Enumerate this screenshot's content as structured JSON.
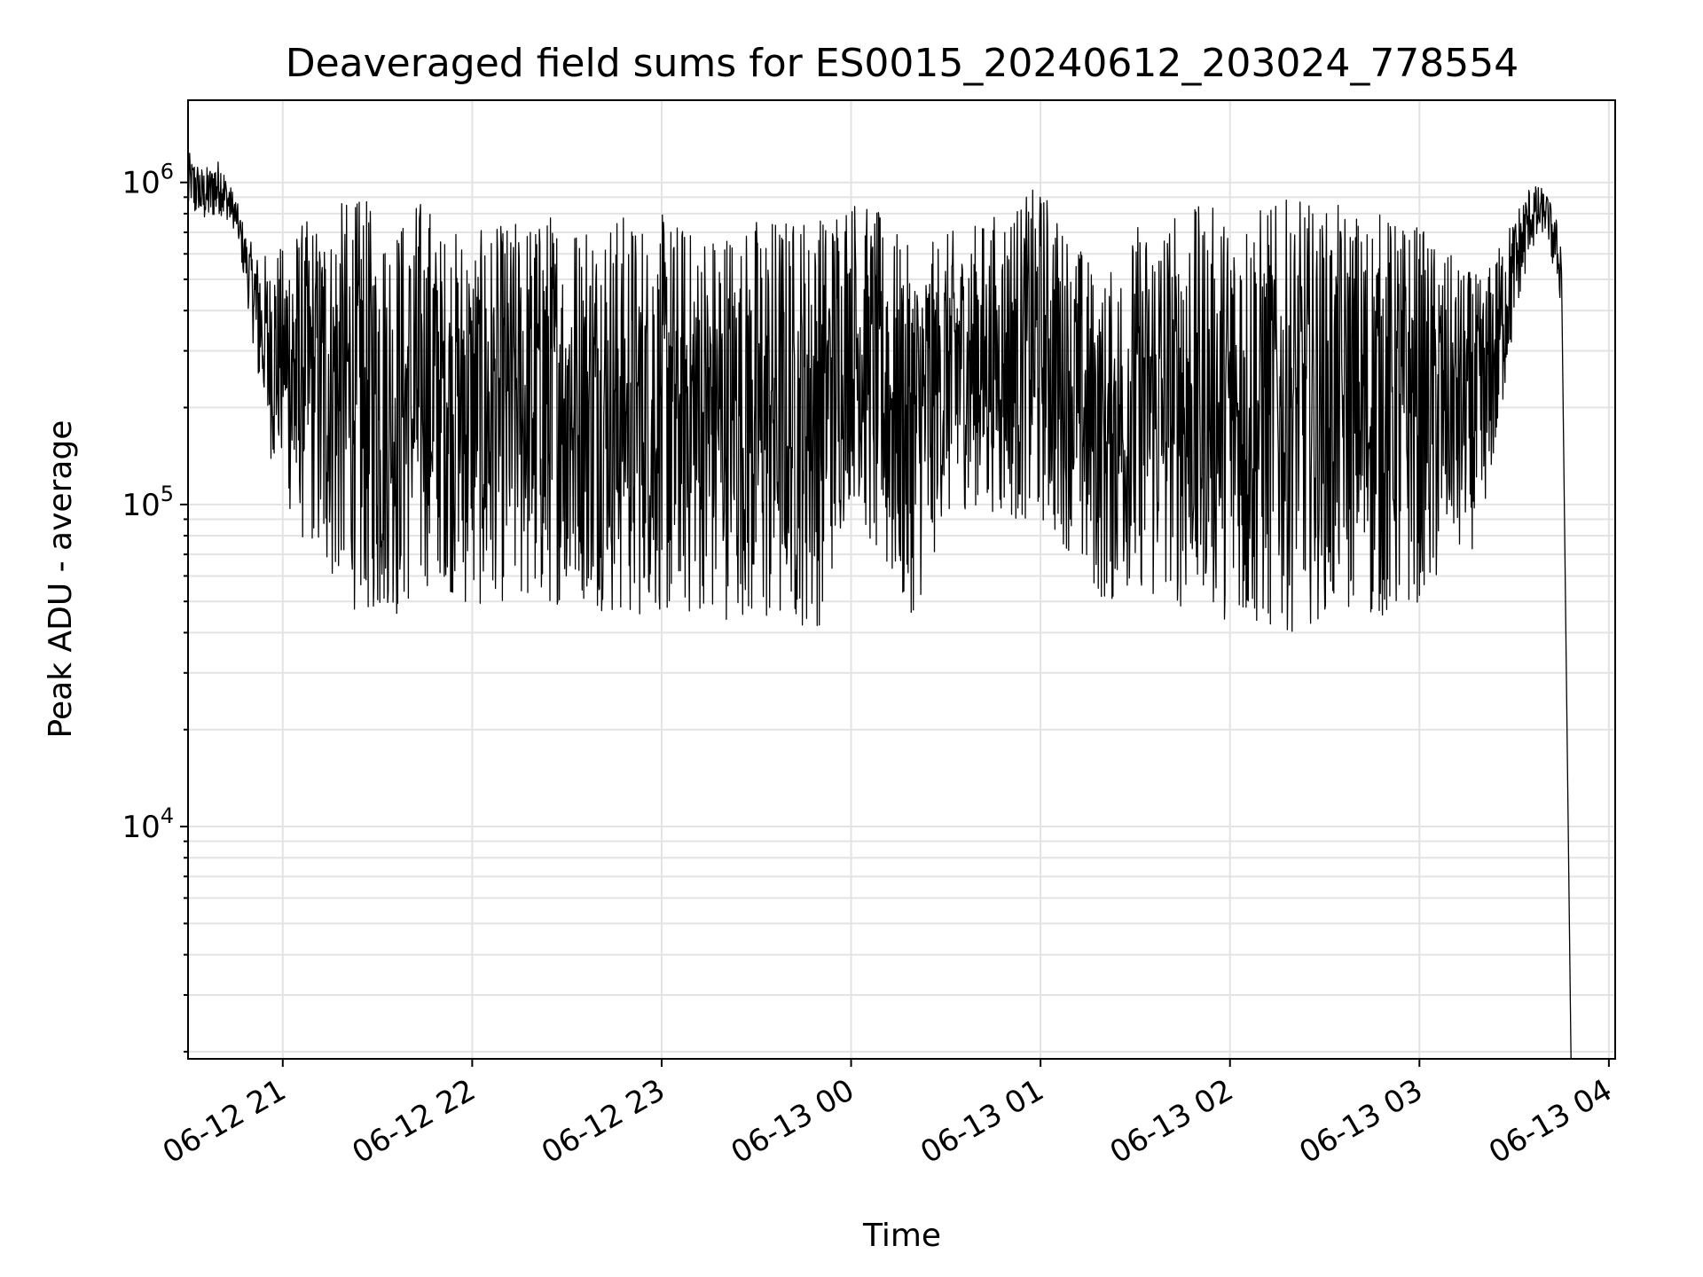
{
  "chart_data": {
    "type": "line",
    "title": "Deaveraged field sums for ES0015_20240612_203024_778554",
    "xlabel": "Time",
    "ylabel": "Peak ADU - average",
    "yscale": "log",
    "ylim": [
      1900,
      1800000
    ],
    "xlim": [
      "2024-06-12 20:30:00",
      "2024-06-13 04:02:00"
    ],
    "x_ticks": [
      {
        "value": "2024-06-12 21:00",
        "label": "06-12 21"
      },
      {
        "value": "2024-06-12 22:00",
        "label": "06-12 22"
      },
      {
        "value": "2024-06-12 23:00",
        "label": "06-12 23"
      },
      {
        "value": "2024-06-13 00:00",
        "label": "06-13 00"
      },
      {
        "value": "2024-06-13 01:00",
        "label": "06-13 01"
      },
      {
        "value": "2024-06-13 02:00",
        "label": "06-13 02"
      },
      {
        "value": "2024-06-13 03:00",
        "label": "06-13 03"
      },
      {
        "value": "2024-06-13 04:00",
        "label": "06-13 04"
      }
    ],
    "y_ticks": [
      {
        "value": 10000,
        "base": "10",
        "exp": "4"
      },
      {
        "value": 100000,
        "base": "10",
        "exp": "5"
      },
      {
        "value": 1000000,
        "base": "10",
        "exp": "6"
      }
    ],
    "grid": true,
    "line_color": "#000000",
    "series": [
      {
        "x": [
          "2024-06-12 20:30",
          "2024-06-12 20:35",
          "2024-06-12 20:40",
          "2024-06-12 20:45",
          "2024-06-12 20:50",
          "2024-06-12 20:55",
          "2024-06-12 21:00",
          "2024-06-12 21:05",
          "2024-06-12 21:10",
          "2024-06-12 21:15",
          "2024-06-12 21:20",
          "2024-06-12 21:25",
          "2024-06-12 21:30",
          "2024-06-12 21:35",
          "2024-06-12 21:40",
          "2024-06-12 21:45",
          "2024-06-12 21:50",
          "2024-06-12 21:55",
          "2024-06-12 22:00",
          "2024-06-12 22:10",
          "2024-06-12 22:20",
          "2024-06-12 22:30",
          "2024-06-12 22:40",
          "2024-06-12 22:50",
          "2024-06-12 23:00",
          "2024-06-12 23:10",
          "2024-06-12 23:20",
          "2024-06-12 23:30",
          "2024-06-12 23:40",
          "2024-06-12 23:50",
          "2024-06-13 00:00",
          "2024-06-13 00:10",
          "2024-06-13 00:20",
          "2024-06-13 00:30",
          "2024-06-13 00:40",
          "2024-06-13 00:50",
          "2024-06-13 01:00",
          "2024-06-13 01:10",
          "2024-06-13 01:20",
          "2024-06-13 01:30",
          "2024-06-13 01:40",
          "2024-06-13 01:50",
          "2024-06-13 02:00",
          "2024-06-13 02:10",
          "2024-06-13 02:20",
          "2024-06-13 02:30",
          "2024-06-13 02:40",
          "2024-06-13 02:50",
          "2024-06-13 03:00",
          "2024-06-13 03:10",
          "2024-06-13 03:20",
          "2024-06-13 03:30",
          "2024-06-13 03:35",
          "2024-06-13 03:40",
          "2024-06-13 03:45",
          "2024-06-13 03:48"
        ],
        "min": [
          800000,
          750000,
          800000,
          700000,
          350000,
          150000,
          110000,
          80000,
          70000,
          60000,
          50000,
          45000,
          45000,
          42000,
          50000,
          55000,
          60000,
          50000,
          48000,
          50000,
          50000,
          48000,
          47000,
          45000,
          45000,
          45000,
          44000,
          43000,
          42000,
          42000,
          110000,
          60000,
          45000,
          90000,
          100000,
          90000,
          90000,
          70000,
          50000,
          50000,
          50000,
          45000,
          42000,
          42000,
          40000,
          45000,
          45000,
          45000,
          50000,
          60000,
          80000,
          350000,
          600000,
          700000,
          400000,
          1900
        ],
        "max": [
          1250000,
          1100000,
          1200000,
          900000,
          650000,
          600000,
          650000,
          750000,
          800000,
          850000,
          900000,
          900000,
          850000,
          800000,
          850000,
          950000,
          700000,
          750000,
          700000,
          750000,
          800000,
          850000,
          850000,
          800000,
          800000,
          750000,
          750000,
          800000,
          800000,
          850000,
          950000,
          800000,
          600000,
          700000,
          750000,
          850000,
          1000000,
          700000,
          500000,
          750000,
          800000,
          850000,
          850000,
          850000,
          900000,
          850000,
          850000,
          800000,
          750000,
          600000,
          500000,
          800000,
          1000000,
          950000,
          700000,
          400000
        ]
      }
    ]
  }
}
